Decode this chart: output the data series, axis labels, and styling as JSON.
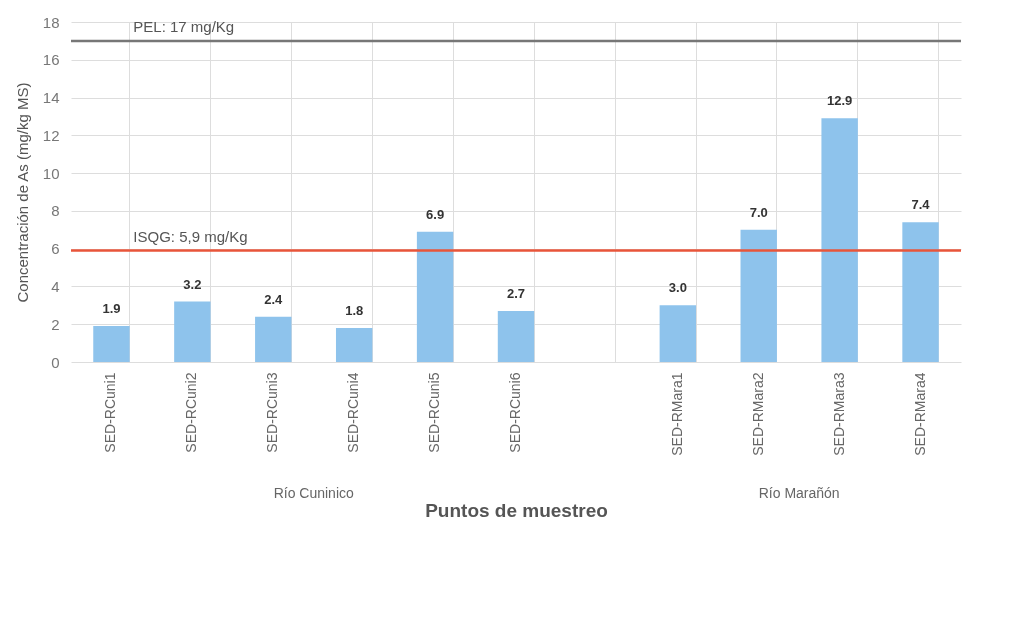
{
  "chart_data": {
    "type": "bar",
    "xlabel": "Puntos de muestreo",
    "ylabel": "Concentración de As (mg/kg MS)",
    "categories": [
      "SED-RCuni1",
      "SED-RCuni2",
      "SED-RCuni3",
      "SED-RCuni4",
      "SED-RCuni5",
      "SED-RCuni6",
      null,
      "SED-RMara1",
      "SED-RMara2",
      "SED-RMara3",
      "SED-RMara4"
    ],
    "values": [
      1.9,
      3.2,
      2.4,
      1.8,
      6.9,
      2.7,
      null,
      3.0,
      7.0,
      12.9,
      7.4
    ],
    "value_labels": [
      "1.9",
      "3.2",
      "2.4",
      "1.8",
      "6.9",
      "2.7",
      null,
      "3.0",
      "7.0",
      "12.9",
      "7.4"
    ],
    "color": "#8ec3ec",
    "ylim": [
      0,
      18
    ],
    "yticks": [
      0,
      2,
      4,
      6,
      8,
      10,
      12,
      14,
      16,
      18
    ],
    "grid": true,
    "ref_lines": [
      {
        "axis": "y",
        "value": 17,
        "label": "PEL: 17 mg/Kg",
        "color": "#777777"
      },
      {
        "axis": "y",
        "value": 5.9,
        "label": "ISQG: 5,9 mg/Kg",
        "color": "#e8553a"
      }
    ],
    "annotations": [
      "Río Cuninico",
      "Río Marañón"
    ]
  }
}
